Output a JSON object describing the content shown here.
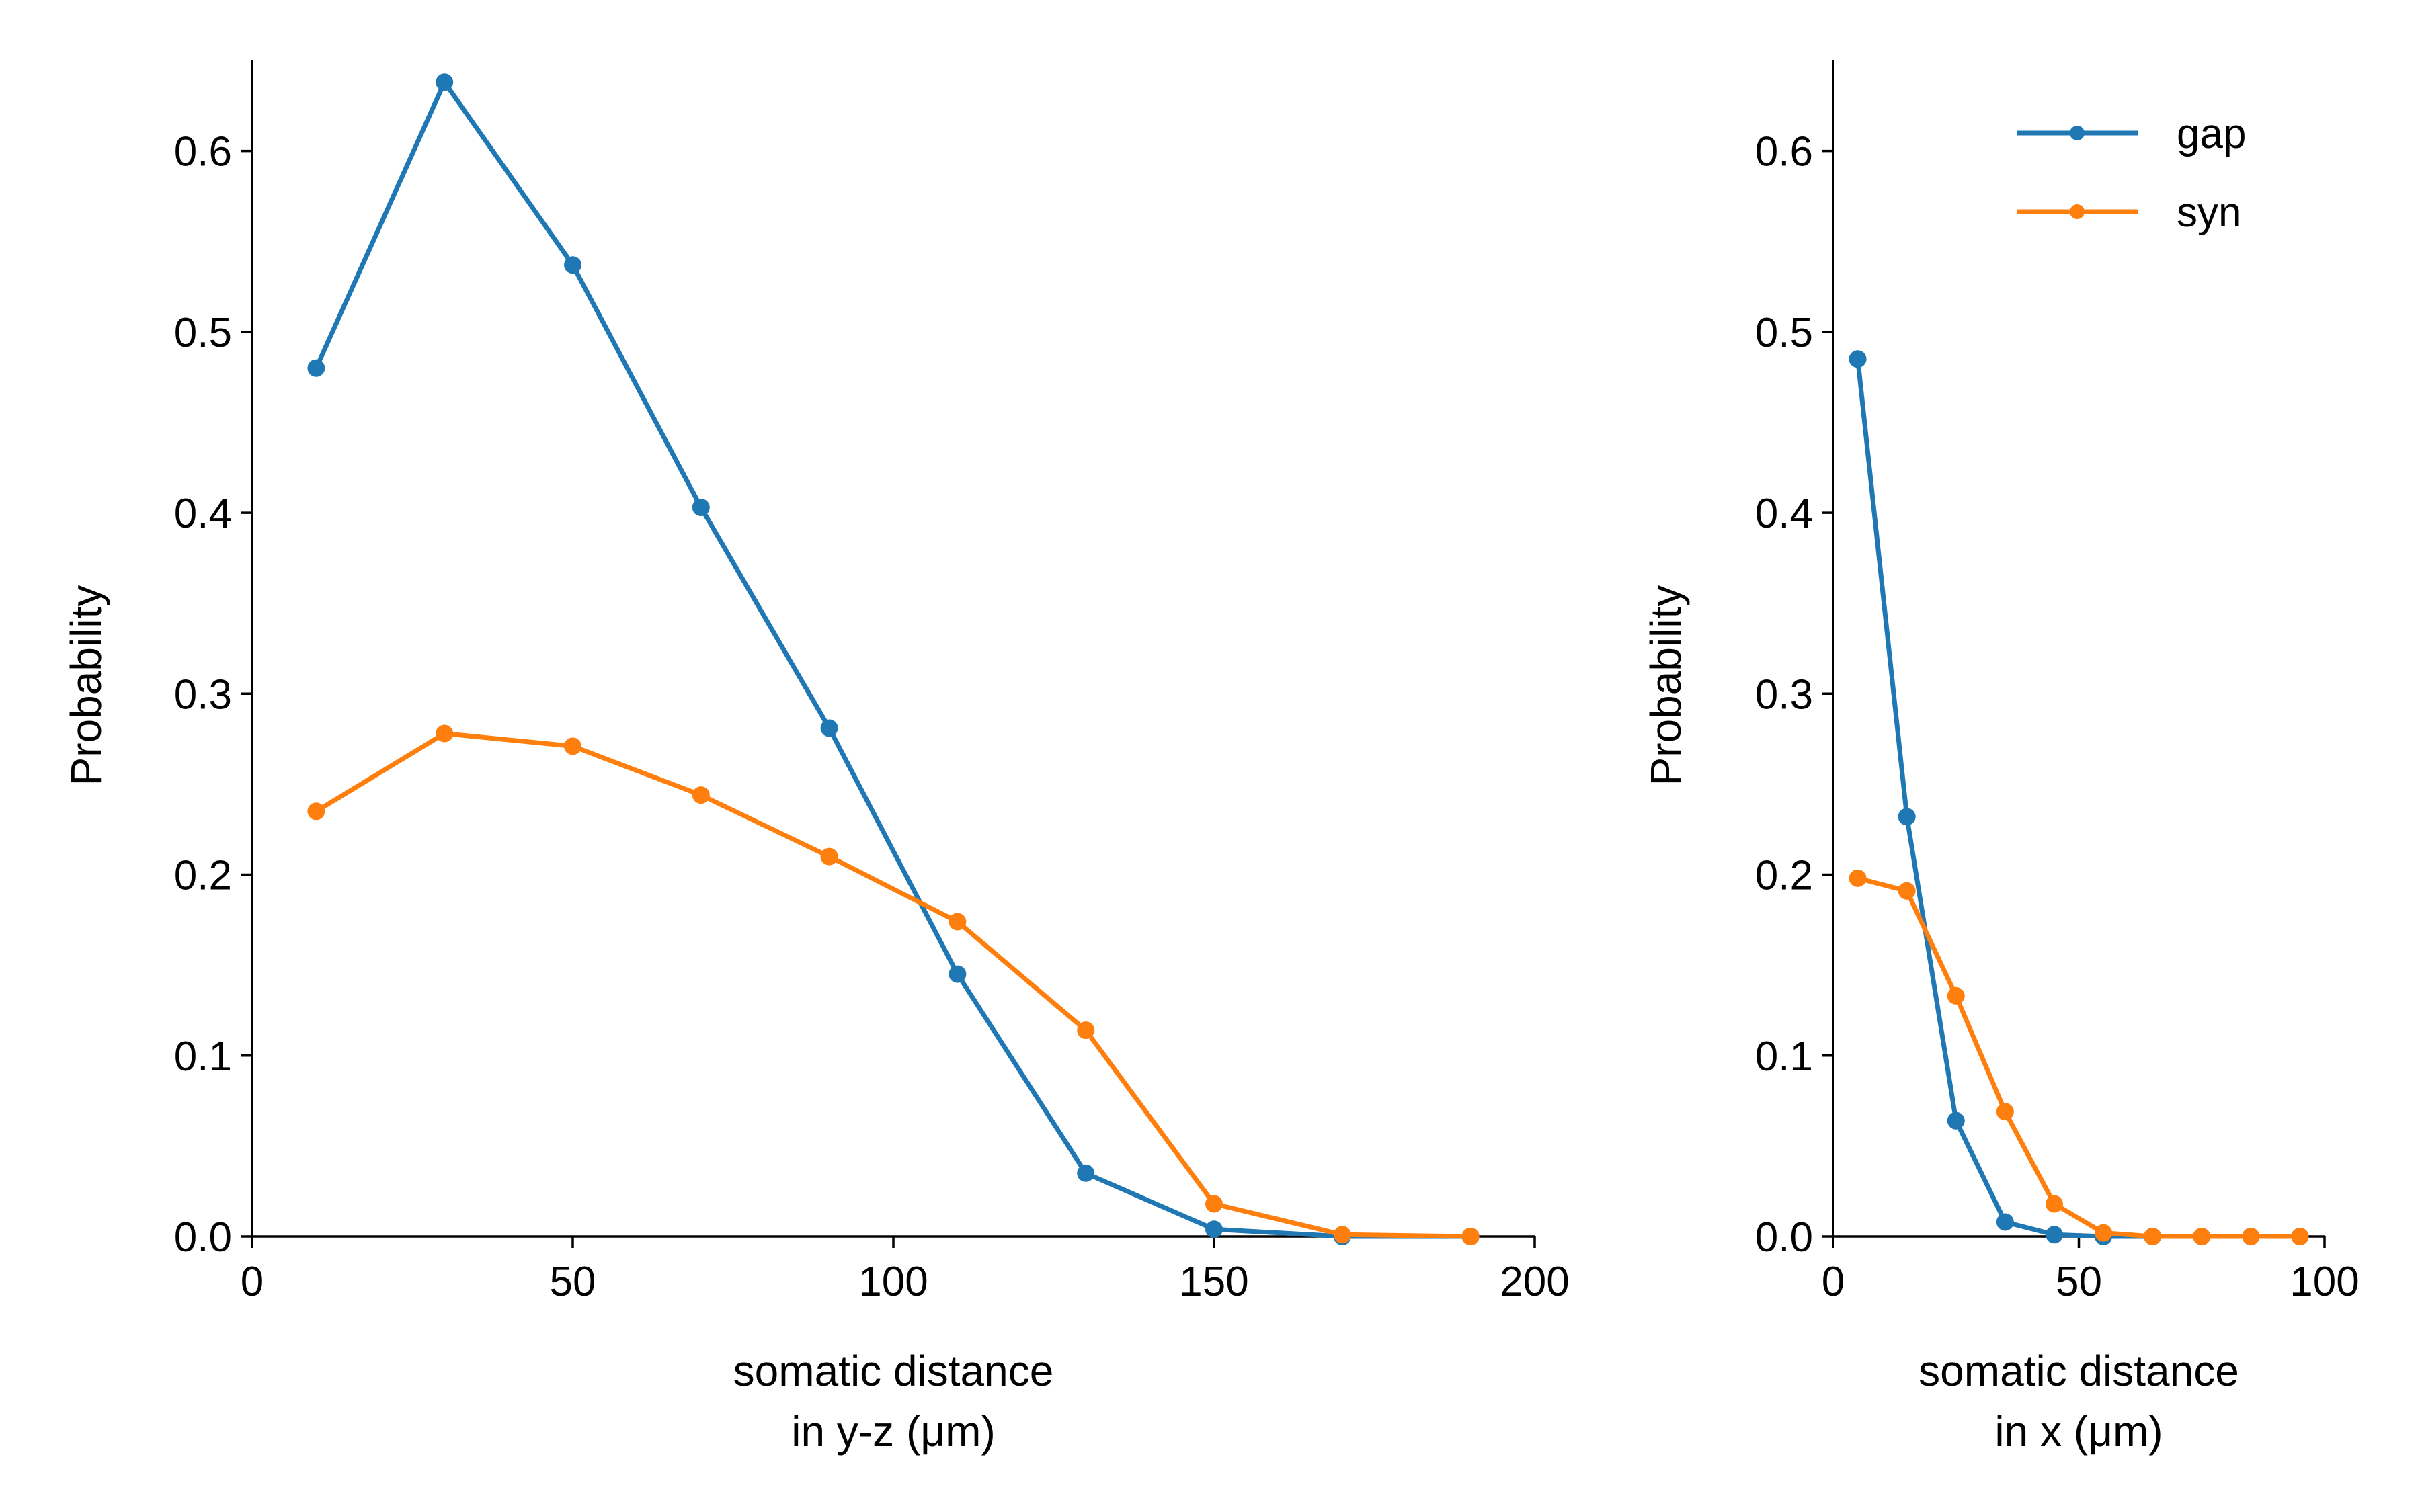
{
  "colors": {
    "gap": "#1f77b4",
    "syn": "#ff7f0e",
    "axis": "#000000"
  },
  "legend": {
    "placement": "top-right of right panel",
    "entries": [
      {
        "label": "gap",
        "color": "#1f77b4"
      },
      {
        "label": "syn",
        "color": "#ff7f0e"
      }
    ]
  },
  "chart_data": [
    {
      "type": "line",
      "xlabel_line1": "somatic distance",
      "xlabel_line2": "in y-z (μm)",
      "ylabel": "Probability",
      "xlim": [
        0,
        200
      ],
      "ylim": [
        0,
        0.65
      ],
      "xticks": [
        0,
        50,
        100,
        150,
        200
      ],
      "xtick_labels": [
        "0",
        "50",
        "100",
        "150",
        "200"
      ],
      "yticks": [
        0.0,
        0.1,
        0.2,
        0.3,
        0.4,
        0.5,
        0.6
      ],
      "ytick_labels": [
        "0.0",
        "0.1",
        "0.2",
        "0.3",
        "0.4",
        "0.5",
        "0.6"
      ],
      "grid": false,
      "x": [
        10,
        30,
        50,
        70,
        90,
        110,
        130,
        150,
        170,
        190
      ],
      "series": [
        {
          "name": "gap",
          "color": "#1f77b4",
          "values": [
            0.48,
            0.638,
            0.537,
            0.403,
            0.281,
            0.145,
            0.035,
            0.004,
            0.0,
            0.0
          ]
        },
        {
          "name": "syn",
          "color": "#ff7f0e",
          "values": [
            0.235,
            0.278,
            0.271,
            0.244,
            0.21,
            0.174,
            0.114,
            0.018,
            0.001,
            0.0
          ]
        }
      ]
    },
    {
      "type": "line",
      "xlabel_line1": "somatic distance",
      "xlabel_line2": "in x (μm)",
      "ylabel": "Probability",
      "xlim": [
        0,
        100
      ],
      "ylim": [
        0,
        0.65
      ],
      "xticks": [
        0,
        50,
        100
      ],
      "xtick_labels": [
        "0",
        "50",
        "100"
      ],
      "yticks": [
        0.0,
        0.1,
        0.2,
        0.3,
        0.4,
        0.5,
        0.6
      ],
      "ytick_labels": [
        "0.0",
        "0.1",
        "0.2",
        "0.3",
        "0.4",
        "0.5",
        "0.6"
      ],
      "grid": false,
      "x": [
        5,
        15,
        25,
        35,
        45,
        55,
        65,
        75,
        85,
        95
      ],
      "series": [
        {
          "name": "gap",
          "color": "#1f77b4",
          "values": [
            0.485,
            0.232,
            0.064,
            0.008,
            0.001,
            0.0,
            0.0,
            0.0,
            0.0,
            0.0
          ]
        },
        {
          "name": "syn",
          "color": "#ff7f0e",
          "values": [
            0.198,
            0.191,
            0.133,
            0.069,
            0.018,
            0.002,
            0.0,
            0.0,
            0.0,
            0.0
          ]
        }
      ]
    }
  ]
}
